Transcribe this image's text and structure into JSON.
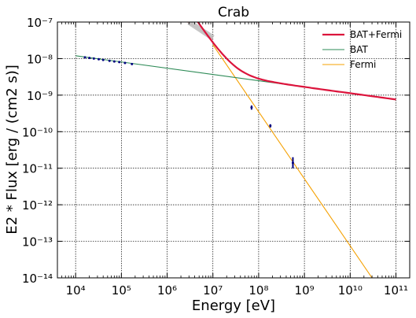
{
  "chart_data": {
    "type": "line",
    "title": "Crab",
    "xlabel": "Energy [eV]",
    "ylabel": "E2 * Flux [erg / (cm2 s)]",
    "xscale": "log",
    "yscale": "log",
    "xlim": [
      4000,
      200000000000
    ],
    "ylim": [
      1e-14,
      1e-07
    ],
    "xticks": [
      {
        "value": 10000,
        "label": "10⁴"
      },
      {
        "value": 100000,
        "label": "10⁵"
      },
      {
        "value": 1000000,
        "label": "10⁶"
      },
      {
        "value": 10000000,
        "label": "10⁷"
      },
      {
        "value": 100000000,
        "label": "10⁸"
      },
      {
        "value": 1000000000,
        "label": "10⁹"
      },
      {
        "value": 10000000000,
        "label": "10¹⁰"
      },
      {
        "value": 100000000000,
        "label": "10¹¹"
      }
    ],
    "yticks": [
      {
        "value": 1e-14,
        "label": "10⁻¹⁴"
      },
      {
        "value": 1e-13,
        "label": "10⁻¹³"
      },
      {
        "value": 1e-12,
        "label": "10⁻¹²"
      },
      {
        "value": 1e-11,
        "label": "10⁻¹¹"
      },
      {
        "value": 1e-10,
        "label": "10⁻¹⁰"
      },
      {
        "value": 1e-09,
        "label": "10⁻⁹"
      },
      {
        "value": 1e-08,
        "label": "10⁻⁸"
      },
      {
        "value": 1e-07,
        "label": "10⁻⁷"
      }
    ],
    "grid": true,
    "legend_position": "top-right",
    "series": [
      {
        "name": "BAT+Fermi",
        "color": "#dc143c",
        "style": "thick",
        "x": [
          10000000,
          20000000,
          50000000,
          100000000,
          1000000000,
          10000000000,
          100000000000
        ],
        "y": [
          3.7e-08,
          1.4e-08,
          4.2e-09,
          2.6e-09,
          1.7e-09,
          1.15e-09,
          7.6e-10
        ]
      },
      {
        "name": "BAT",
        "color": "#2e8b57",
        "style": "thin",
        "x": [
          10000,
          100000000000
        ],
        "y": [
          1.2e-08,
          7.6e-10
        ]
      },
      {
        "name": "Fermi",
        "color": "#f5a000",
        "style": "thin",
        "x": [
          10000000,
          30000000000
        ],
        "y": [
          2.4e-08,
          1e-14
        ]
      }
    ],
    "points": [
      {
        "name": "BAT data",
        "color": "#000080",
        "x": [
          16000,
          20000,
          25000,
          32000,
          40000,
          55000,
          70000,
          90000,
          120000,
          170000
        ],
        "y": [
          1.08e-08,
          1.04e-08,
          1e-08,
          9.6e-09,
          9.2e-09,
          8.7e-09,
          8.3e-09,
          8e-09,
          7.6e-09,
          7.1e-09
        ],
        "y_low": [],
        "y_high": []
      },
      {
        "name": "Fermi data",
        "color": "#000080",
        "x": [
          70000000,
          180000000,
          560000000
        ],
        "y": [
          4.6e-10,
          1.45e-10,
          1.4e-11
        ],
        "y_low": [
          4e-10,
          1.3e-10,
          1e-11
        ],
        "y_high": [
          5.2e-10,
          1.6e-10,
          2e-11
        ]
      }
    ]
  }
}
